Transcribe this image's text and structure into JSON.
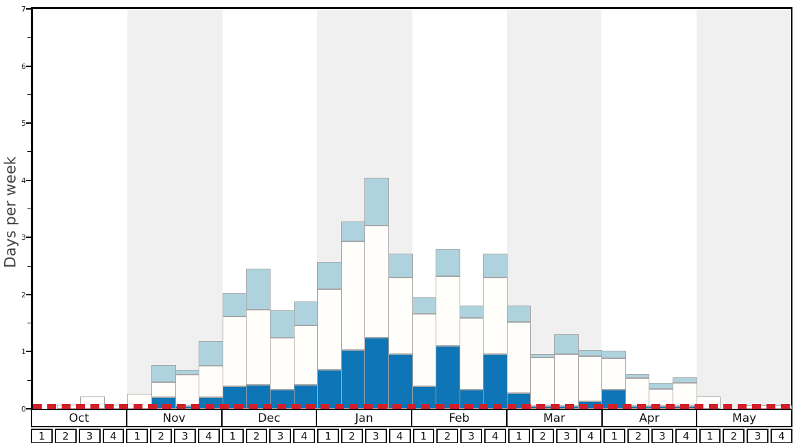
{
  "chart_data": {
    "type": "bar",
    "subtype": "stacked-weekly-histogram",
    "title": "",
    "ylabel": "Days per week",
    "xlabel": "",
    "ylim": [
      0,
      7
    ],
    "yticks": [
      0,
      1,
      2,
      3,
      4,
      5,
      6,
      7
    ],
    "minor_tick_step": 0.5,
    "grid": false,
    "legend": "none",
    "months": [
      "Oct",
      "Nov",
      "Dec",
      "Jan",
      "Feb",
      "Mar",
      "Apr",
      "May"
    ],
    "week_labels": [
      "1",
      "2",
      "3",
      "4"
    ],
    "shaded_months": [
      "Nov",
      "Jan",
      "Mar",
      "May"
    ],
    "shaded_month_indices": [
      1,
      3,
      5,
      7
    ],
    "series_order": [
      "dark_blue",
      "white",
      "light_blue"
    ],
    "colors": {
      "dark_blue": "#0e76b6",
      "white": "#fffefa",
      "light_blue": "#aed3df",
      "shaded_band": "#f0f0f0",
      "red_line": "#d21f2a",
      "bar_border": "#a6a6a6"
    },
    "red_dashed_line": {
      "value": 0.05,
      "color": "#d21f2a"
    },
    "values": [
      {
        "month": "Oct",
        "week": 1,
        "dark_blue": 0,
        "white": 0,
        "light_blue": 0
      },
      {
        "month": "Oct",
        "week": 2,
        "dark_blue": 0,
        "white": 0.07,
        "light_blue": 0
      },
      {
        "month": "Oct",
        "week": 3,
        "dark_blue": 0,
        "white": 0.21,
        "light_blue": 0
      },
      {
        "month": "Oct",
        "week": 4,
        "dark_blue": 0,
        "white": 0.07,
        "light_blue": 0
      },
      {
        "month": "Nov",
        "week": 1,
        "dark_blue": 0,
        "white": 0.26,
        "light_blue": 0
      },
      {
        "month": "Nov",
        "week": 2,
        "dark_blue": 0.2,
        "white": 0.27,
        "light_blue": 0.3
      },
      {
        "month": "Nov",
        "week": 3,
        "dark_blue": 0.05,
        "white": 0.55,
        "light_blue": 0.08
      },
      {
        "month": "Nov",
        "week": 4,
        "dark_blue": 0.2,
        "white": 0.56,
        "light_blue": 0.42
      },
      {
        "month": "Dec",
        "week": 1,
        "dark_blue": 0.4,
        "white": 1.21,
        "light_blue": 0.41
      },
      {
        "month": "Dec",
        "week": 2,
        "dark_blue": 0.42,
        "white": 1.32,
        "light_blue": 0.71
      },
      {
        "month": "Dec",
        "week": 3,
        "dark_blue": 0.33,
        "white": 0.91,
        "light_blue": 0.48
      },
      {
        "month": "Dec",
        "week": 4,
        "dark_blue": 0.42,
        "white": 1.04,
        "light_blue": 0.42
      },
      {
        "month": "Jan",
        "week": 1,
        "dark_blue": 0.68,
        "white": 1.41,
        "light_blue": 0.48
      },
      {
        "month": "Jan",
        "week": 2,
        "dark_blue": 1.03,
        "white": 1.9,
        "light_blue": 0.35
      },
      {
        "month": "Jan",
        "week": 3,
        "dark_blue": 1.24,
        "white": 1.97,
        "light_blue": 0.84
      },
      {
        "month": "Jan",
        "week": 4,
        "dark_blue": 0.96,
        "white": 1.34,
        "light_blue": 0.42
      },
      {
        "month": "Feb",
        "week": 1,
        "dark_blue": 0.39,
        "white": 1.27,
        "light_blue": 0.29
      },
      {
        "month": "Feb",
        "week": 2,
        "dark_blue": 1.1,
        "white": 1.22,
        "light_blue": 0.48
      },
      {
        "month": "Feb",
        "week": 3,
        "dark_blue": 0.33,
        "white": 1.26,
        "light_blue": 0.22
      },
      {
        "month": "Feb",
        "week": 4,
        "dark_blue": 0.96,
        "white": 1.34,
        "light_blue": 0.42
      },
      {
        "month": "Mar",
        "week": 1,
        "dark_blue": 0.27,
        "white": 1.25,
        "light_blue": 0.29
      },
      {
        "month": "Mar",
        "week": 2,
        "dark_blue": 0.05,
        "white": 0.85,
        "light_blue": 0.06
      },
      {
        "month": "Mar",
        "week": 3,
        "dark_blue": 0.05,
        "white": 0.91,
        "light_blue": 0.35
      },
      {
        "month": "Mar",
        "week": 4,
        "dark_blue": 0.13,
        "white": 0.79,
        "light_blue": 0.11
      },
      {
        "month": "Apr",
        "week": 1,
        "dark_blue": 0.34,
        "white": 0.54,
        "light_blue": 0.14
      },
      {
        "month": "Apr",
        "week": 2,
        "dark_blue": 0.05,
        "white": 0.49,
        "light_blue": 0.07
      },
      {
        "month": "Apr",
        "week": 3,
        "dark_blue": 0.05,
        "white": 0.3,
        "light_blue": 0.1
      },
      {
        "month": "Apr",
        "week": 4,
        "dark_blue": 0.05,
        "white": 0.4,
        "light_blue": 0.1
      },
      {
        "month": "May",
        "week": 1,
        "dark_blue": 0,
        "white": 0.21,
        "light_blue": 0
      },
      {
        "month": "May",
        "week": 2,
        "dark_blue": 0,
        "white": 0,
        "light_blue": 0
      },
      {
        "month": "May",
        "week": 3,
        "dark_blue": 0,
        "white": 0.06,
        "light_blue": 0
      },
      {
        "month": "May",
        "week": 4,
        "dark_blue": 0,
        "white": 0.06,
        "light_blue": 0
      }
    ]
  }
}
